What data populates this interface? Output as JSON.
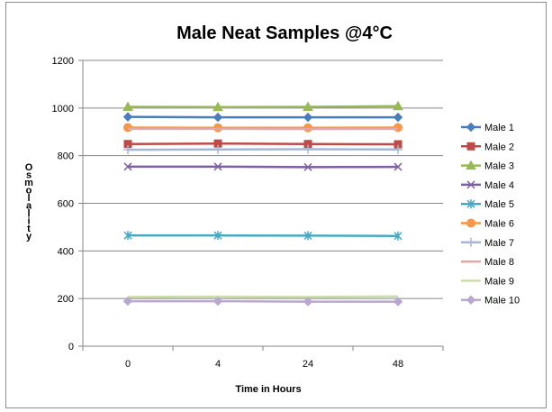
{
  "chart_data": {
    "type": "line",
    "title": "Male Neat Samples @4°C",
    "xlabel": "Time in Hours",
    "ylabel": "Osmolality",
    "categories": [
      "0",
      "4",
      "24",
      "48"
    ],
    "ylim": [
      0,
      1200
    ],
    "yticks": [
      0,
      200,
      400,
      600,
      800,
      1000,
      1200
    ],
    "grid": true,
    "legend_position": "right",
    "series": [
      {
        "name": "Male 1",
        "color": "#4a7ebb",
        "marker": "diamond",
        "values": [
          963,
          961,
          961,
          961
        ]
      },
      {
        "name": "Male 2",
        "color": "#be4b48",
        "marker": "square",
        "values": [
          849,
          851,
          849,
          848
        ]
      },
      {
        "name": "Male 3",
        "color": "#98b954",
        "marker": "triangle",
        "values": [
          1005,
          1004,
          1005,
          1008
        ]
      },
      {
        "name": "Male 4",
        "color": "#7d60a0",
        "marker": "x",
        "values": [
          754,
          754,
          752,
          753
        ]
      },
      {
        "name": "Male 5",
        "color": "#46aac5",
        "marker": "asterisk",
        "values": [
          465,
          465,
          464,
          463
        ]
      },
      {
        "name": "Male 6",
        "color": "#f79646",
        "marker": "circle",
        "values": [
          918,
          917,
          917,
          918
        ]
      },
      {
        "name": "Male 7",
        "color": "#a5b6d9",
        "marker": "plus",
        "values": [
          825,
          826,
          827,
          826
        ]
      },
      {
        "name": "Male 8",
        "color": "#e6a6a5",
        "marker": "none",
        "values": [
          913,
          913,
          912,
          913
        ]
      },
      {
        "name": "Male 9",
        "color": "#cedeaa",
        "marker": "none",
        "values": [
          207,
          208,
          207,
          209
        ]
      },
      {
        "name": "Male 10",
        "color": "#b9a6d1",
        "marker": "diamond",
        "values": [
          189,
          189,
          187,
          187
        ]
      }
    ]
  }
}
